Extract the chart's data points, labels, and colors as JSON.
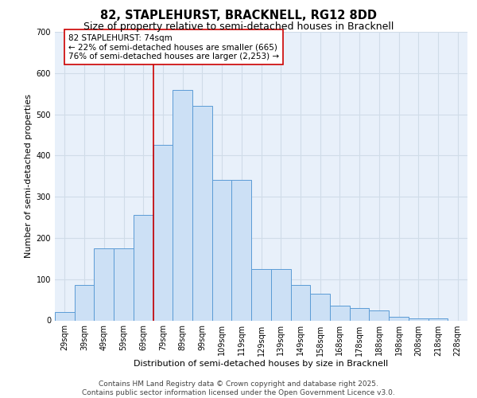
{
  "title_line1": "82, STAPLEHURST, BRACKNELL, RG12 8DD",
  "title_line2": "Size of property relative to semi-detached houses in Bracknell",
  "xlabel": "Distribution of semi-detached houses by size in Bracknell",
  "ylabel": "Number of semi-detached properties",
  "categories": [
    "29sqm",
    "39sqm",
    "49sqm",
    "59sqm",
    "69sqm",
    "79sqm",
    "89sqm",
    "99sqm",
    "109sqm",
    "119sqm",
    "129sqm",
    "139sqm",
    "149sqm",
    "158sqm",
    "168sqm",
    "178sqm",
    "188sqm",
    "198sqm",
    "208sqm",
    "218sqm",
    "228sqm"
  ],
  "values": [
    20,
    85,
    175,
    175,
    255,
    425,
    560,
    520,
    340,
    340,
    125,
    125,
    85,
    65,
    35,
    30,
    25,
    8,
    5,
    5,
    0
  ],
  "bar_color": "#cce0f5",
  "bar_edge_color": "#5b9bd5",
  "background_color": "#e8f0fa",
  "grid_color": "#d0dce8",
  "vline_color": "#cc0000",
  "annotation_text": "82 STAPLEHURST: 74sqm\n← 22% of semi-detached houses are smaller (665)\n76% of semi-detached houses are larger (2,253) →",
  "annotation_box_color": "#ffffff",
  "annotation_border_color": "#cc0000",
  "ylim": [
    0,
    700
  ],
  "yticks": [
    0,
    100,
    200,
    300,
    400,
    500,
    600,
    700
  ],
  "footer_line1": "Contains HM Land Registry data © Crown copyright and database right 2025.",
  "footer_line2": "Contains public sector information licensed under the Open Government Licence v3.0.",
  "title_fontsize": 10.5,
  "subtitle_fontsize": 9,
  "axis_label_fontsize": 8,
  "tick_fontsize": 7,
  "annotation_fontsize": 7.5,
  "footer_fontsize": 6.5
}
